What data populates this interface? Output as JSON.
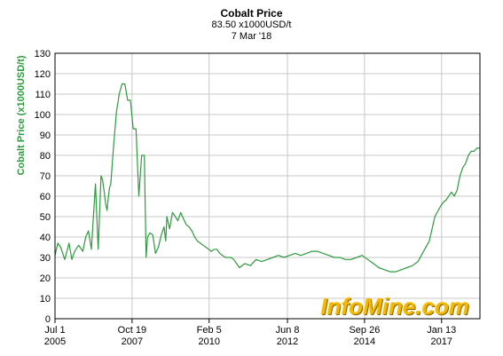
{
  "header": {
    "title": "Cobalt Price",
    "price_line": "83.50 x1000USD/t",
    "date_line": "7 Mar '18"
  },
  "watermark": "InfoMine.com",
  "chart_data": {
    "type": "line",
    "title": "Cobalt Price",
    "ylabel": "Cobalt Price (x1000USD/t)",
    "xlabel": "",
    "ylim": [
      0,
      130
    ],
    "y_ticks": [
      0,
      10,
      20,
      30,
      40,
      50,
      60,
      70,
      80,
      90,
      100,
      110,
      120,
      130
    ],
    "x_ticks": [
      {
        "date": "2005-07-01",
        "label1": "Jul 1",
        "label2": "2005"
      },
      {
        "date": "2007-10-19",
        "label1": "Oct 19",
        "label2": "2007"
      },
      {
        "date": "2010-02-05",
        "label1": "Feb 5",
        "label2": "2010"
      },
      {
        "date": "2012-06-08",
        "label1": "Jun 8",
        "label2": "2012"
      },
      {
        "date": "2014-09-26",
        "label1": "Sep 26",
        "label2": "2014"
      },
      {
        "date": "2017-01-13",
        "label1": "Jan 13",
        "label2": "2017"
      }
    ],
    "xlim": [
      "2005-07-01",
      "2018-03-07"
    ],
    "grid": true,
    "line_color": "#2e9a3e",
    "axis_label_color": "#2e9a3e",
    "series": [
      {
        "x": [
          "2005-07-01",
          "2005-08-01",
          "2005-09-01",
          "2005-10-15",
          "2005-12-01",
          "2006-01-01",
          "2006-02-01",
          "2006-03-15",
          "2006-05-01",
          "2006-06-01",
          "2006-07-01",
          "2006-08-01",
          "2006-09-15",
          "2006-10-15",
          "2006-11-15",
          "2006-12-01",
          "2006-12-20",
          "2007-01-05",
          "2007-01-20",
          "2007-02-01",
          "2007-02-15",
          "2007-03-01",
          "2007-04-01",
          "2007-05-01",
          "2007-06-01",
          "2007-07-01",
          "2007-08-01",
          "2007-09-01",
          "2007-10-01",
          "2007-11-01",
          "2007-12-01",
          "2008-01-01",
          "2008-02-01",
          "2008-03-01",
          "2008-03-20",
          "2008-04-05",
          "2008-05-01",
          "2008-06-01",
          "2008-07-01",
          "2008-08-01",
          "2008-09-01",
          "2008-10-01",
          "2008-10-20",
          "2008-11-01",
          "2008-12-01",
          "2009-01-01",
          "2009-02-01",
          "2009-03-01",
          "2009-04-01",
          "2009-05-01",
          "2009-06-01",
          "2009-07-01",
          "2009-08-01",
          "2009-09-01",
          "2009-10-01",
          "2009-11-01",
          "2009-12-01",
          "2010-01-01",
          "2010-02-01",
          "2010-03-01",
          "2010-04-01",
          "2010-05-01",
          "2010-06-01",
          "2010-07-01",
          "2010-08-01",
          "2010-09-01",
          "2010-10-01",
          "2010-11-01",
          "2010-12-01",
          "2011-01-01",
          "2011-03-01",
          "2011-05-01",
          "2011-07-01",
          "2011-09-01",
          "2011-11-01",
          "2012-01-01",
          "2012-03-01",
          "2012-05-01",
          "2012-07-01",
          "2012-09-01",
          "2012-11-01",
          "2013-01-01",
          "2013-03-01",
          "2013-05-01",
          "2013-07-01",
          "2013-09-01",
          "2013-11-01",
          "2014-01-01",
          "2014-03-01",
          "2014-05-01",
          "2014-07-01",
          "2014-09-01",
          "2014-11-01",
          "2015-01-01",
          "2015-03-01",
          "2015-05-01",
          "2015-07-01",
          "2015-09-01",
          "2015-11-01",
          "2016-01-01",
          "2016-03-01",
          "2016-05-01",
          "2016-07-01",
          "2016-09-01",
          "2016-11-01",
          "2017-01-01",
          "2017-02-01",
          "2017-03-01",
          "2017-04-01",
          "2017-05-01",
          "2017-06-01",
          "2017-07-01",
          "2017-08-01",
          "2017-09-01",
          "2017-10-01",
          "2017-11-01",
          "2017-12-01",
          "2018-01-01",
          "2018-02-01",
          "2018-03-07"
        ],
        "y": [
          31,
          37,
          35,
          29,
          37,
          29,
          33,
          36,
          33,
          40,
          43,
          34,
          66,
          34,
          70,
          68,
          62,
          56,
          53,
          59,
          64,
          66,
          85,
          101,
          110,
          115,
          115,
          107,
          107,
          93,
          93,
          60,
          80,
          80,
          30,
          40,
          42,
          41,
          32,
          35,
          41,
          45,
          38,
          50,
          44,
          52,
          50,
          48,
          52,
          49,
          46,
          45,
          43,
          40,
          38,
          37,
          36,
          35,
          34,
          33,
          34,
          34,
          32,
          31,
          30,
          30,
          30,
          29,
          27,
          25,
          27,
          26,
          29,
          28,
          29,
          30,
          31,
          30,
          31,
          32,
          31,
          32,
          33,
          33,
          32,
          31,
          30,
          30,
          29,
          29,
          30,
          31,
          29,
          27,
          25,
          24,
          23,
          23,
          24,
          25,
          26,
          28,
          33,
          38,
          50,
          55,
          57,
          58,
          60,
          62,
          60,
          63,
          70,
          74,
          76,
          80,
          82,
          82,
          83.5,
          83.5
        ]
      }
    ]
  }
}
